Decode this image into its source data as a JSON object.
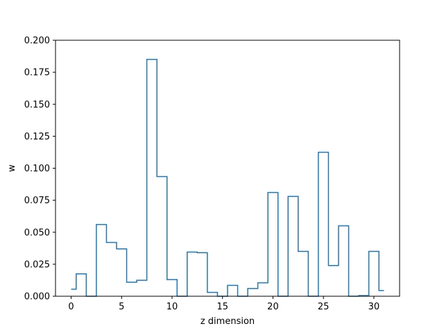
{
  "chart_data": {
    "type": "line",
    "drawstyle": "steps-mid",
    "title": "",
    "xlabel": "z dimension",
    "ylabel": "w",
    "xlim": [
      -1.55,
      32.55
    ],
    "ylim": [
      0,
      0.2
    ],
    "xticks": [
      0,
      5,
      10,
      15,
      20,
      25,
      30
    ],
    "yticks": [
      "0.000",
      "0.025",
      "0.050",
      "0.075",
      "0.100",
      "0.125",
      "0.150",
      "0.175",
      "0.200"
    ],
    "grid": false,
    "series": [
      {
        "color": "#1f77b4",
        "x": [
          0,
          1,
          2,
          3,
          4,
          5,
          6,
          7,
          8,
          9,
          10,
          11,
          12,
          13,
          14,
          15,
          16,
          17,
          18,
          19,
          20,
          21,
          22,
          23,
          24,
          25,
          26,
          27,
          28,
          29,
          30,
          31
        ],
        "y": [
          0.0055,
          0.0175,
          0.0,
          0.056,
          0.042,
          0.037,
          0.011,
          0.0125,
          0.185,
          0.0935,
          0.013,
          0.0,
          0.0345,
          0.034,
          0.003,
          0.0,
          0.0085,
          0.0,
          0.006,
          0.0105,
          0.081,
          0.0,
          0.078,
          0.035,
          0.0,
          0.1125,
          0.024,
          0.055,
          0.0,
          0.0005,
          0.035,
          0.0045
        ]
      }
    ]
  }
}
